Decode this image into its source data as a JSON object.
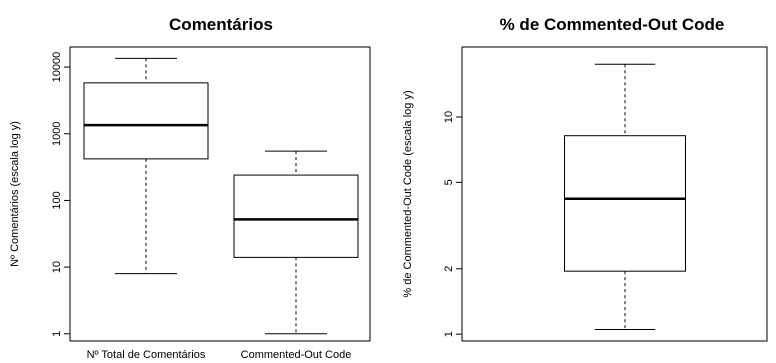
{
  "chart_data": [
    {
      "type": "boxplot",
      "title": "Comentários",
      "ylabel": "Nº Comentários (escala log y)",
      "xlabel": "",
      "yscale": "log",
      "ylim": [
        0.78,
        20000
      ],
      "yticks": [
        1,
        10,
        100,
        1000,
        10000
      ],
      "ytick_labels": [
        "1",
        "10",
        "100",
        "1000",
        "10000"
      ],
      "grid": false,
      "categories": [
        "Nº Total de Comentários",
        "Commented-Out Code"
      ],
      "boxes": [
        {
          "label": "Nº Total de Comentários",
          "whisker_low": 8,
          "q1": 420,
          "median": 1350,
          "q3": 5800,
          "whisker_high": 13500
        },
        {
          "label": "Commented-Out Code",
          "whisker_low": 1,
          "q1": 14,
          "median": 52,
          "q3": 240,
          "whisker_high": 550
        }
      ]
    },
    {
      "type": "boxplot",
      "title": "% de Commented-Out Code",
      "ylabel": "% de Commented-Out Code (escala log y)",
      "xlabel": "",
      "yscale": "log",
      "ylim": [
        0.93,
        21
      ],
      "yticks": [
        1,
        2,
        5,
        10
      ],
      "ytick_labels": [
        "1",
        "2",
        "5",
        "10"
      ],
      "grid": false,
      "categories": [
        ""
      ],
      "boxes": [
        {
          "label": "",
          "whisker_low": 1.05,
          "q1": 1.95,
          "median": 4.2,
          "q3": 8.2,
          "whisker_high": 17.5
        }
      ]
    }
  ]
}
